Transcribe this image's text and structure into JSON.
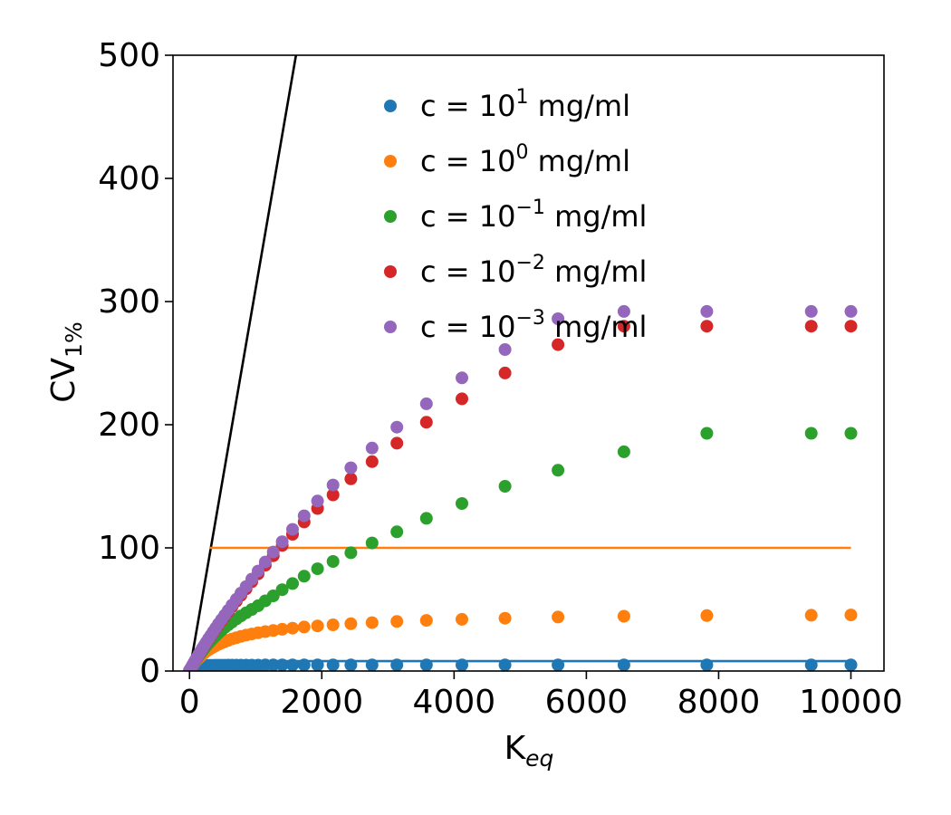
{
  "chart_data": {
    "type": "scatter",
    "xlabel": "K",
    "xlabel_sub": "eq",
    "ylabel": "CV",
    "ylabel_sub": "1%",
    "xlim": [
      -250,
      10500
    ],
    "ylim": [
      0,
      500
    ],
    "xticks": [
      0,
      2000,
      4000,
      6000,
      8000,
      10000
    ],
    "yticks": [
      0,
      100,
      200,
      300,
      400,
      500
    ],
    "xtick_labels": [
      "0",
      "2000",
      "4000",
      "6000",
      "8000",
      "10000"
    ],
    "ytick_labels": [
      "0",
      "100",
      "200",
      "300",
      "400",
      "500"
    ],
    "grid": false,
    "legend_position": "top-center",
    "x": [
      1,
      22,
      46,
      69,
      93,
      118,
      143,
      170,
      197,
      226,
      256,
      288,
      322,
      358,
      397,
      438,
      483,
      532,
      585,
      643,
      707,
      777,
      855,
      941,
      1037,
      1145,
      1266,
      1402,
      1557,
      1733,
      1936,
      2170,
      2440,
      2760,
      3135,
      3582,
      4119,
      4771,
      5572,
      6568,
      7822,
      9400,
      10000
    ],
    "series": [
      {
        "name_prefix": "c = 10",
        "name_exp": "1",
        "name_suffix": " mg/ml",
        "color": "#1f77b4",
        "values": [
          0.5,
          1.9,
          2.9,
          3.5,
          3.8,
          4.0,
          4.2,
          4.3,
          4.4,
          4.5,
          4.5,
          4.6,
          4.6,
          4.6,
          4.7,
          4.7,
          4.7,
          4.7,
          4.8,
          4.8,
          4.8,
          4.8,
          4.8,
          4.8,
          4.8,
          4.9,
          4.9,
          4.9,
          4.9,
          4.9,
          4.9,
          4.9,
          4.9,
          4.9,
          4.9,
          4.9,
          4.9,
          4.9,
          4.9,
          4.9,
          4.9,
          4.9,
          5.0
        ]
      },
      {
        "name_prefix": "c = 10",
        "name_exp": "0",
        "name_suffix": " mg/ml",
        "color": "#ff7f0e",
        "values": [
          0.5,
          2.3,
          4.3,
          6.1,
          7.8,
          9.4,
          10.8,
          12.2,
          13.5,
          14.8,
          16.0,
          17.2,
          18.4,
          19.5,
          20.6,
          21.7,
          22.8,
          23.9,
          24.9,
          26.0,
          27.0,
          28.1,
          29.1,
          30.1,
          31.0,
          32.0,
          32.9,
          33.9,
          34.8,
          35.7,
          36.6,
          37.5,
          38.4,
          39.3,
          40.2,
          41.1,
          42.0,
          42.9,
          43.8,
          44.5,
          45.0,
          45.3,
          45.5
        ]
      },
      {
        "name_prefix": "c = 10",
        "name_exp": "−1",
        "name_suffix": " mg/ml",
        "color": "#2ca02c",
        "values": [
          0.5,
          2.3,
          4.4,
          6.5,
          8.5,
          10.5,
          12.5,
          14.5,
          16.5,
          18.5,
          20.5,
          22.5,
          24.6,
          26.6,
          28.7,
          30.8,
          33.0,
          35.2,
          37.5,
          39.8,
          42.2,
          44.7,
          47.3,
          50.0,
          53.0,
          57.0,
          61.0,
          66.0,
          71.0,
          77.0,
          83.0,
          89.0,
          96.0,
          104.0,
          113.0,
          124.0,
          136.0,
          150.0,
          163.0,
          178.0,
          193.0,
          193.0,
          193.0
        ]
      },
      {
        "name_prefix": "c = 10",
        "name_exp": "−2",
        "name_suffix": " mg/ml",
        "color": "#d62728",
        "values": [
          0.5,
          2.4,
          4.6,
          6.8,
          9.0,
          11.2,
          13.5,
          15.8,
          18.2,
          20.6,
          23.1,
          25.7,
          28.4,
          31.2,
          34.2,
          37.3,
          40.7,
          44.3,
          48.1,
          52.2,
          56.7,
          61.5,
          66.7,
          72.5,
          78.9,
          85.9,
          93.6,
          102.0,
          111.0,
          121.0,
          132.0,
          143.0,
          156.0,
          170.0,
          185.0,
          202.0,
          221.0,
          242.0,
          265.0,
          280.0,
          280.0,
          280.0,
          280.0
        ]
      },
      {
        "name_prefix": "c = 10",
        "name_exp": "−3",
        "name_suffix": " mg/ml",
        "color": "#9467bd",
        "values": [
          0.5,
          2.5,
          4.7,
          7.0,
          9.2,
          11.5,
          13.8,
          16.2,
          18.6,
          21.1,
          23.6,
          26.3,
          29.0,
          31.9,
          35.0,
          38.2,
          41.7,
          45.4,
          49.3,
          53.6,
          58.2,
          63.2,
          68.6,
          74.6,
          81.2,
          88.5,
          96.6,
          105.0,
          115.0,
          126.0,
          138.0,
          151.0,
          165.0,
          181.0,
          198.0,
          217.0,
          238.0,
          261.0,
          286.0,
          292.0,
          292.0,
          292.0,
          292.0
        ]
      }
    ],
    "reference_lines": [
      {
        "color": "#000000",
        "points": [
          [
            0,
            0
          ],
          [
            1610,
            500
          ]
        ]
      },
      {
        "color": "#ff7f0e",
        "points": [
          [
            300,
            100
          ],
          [
            10000,
            100
          ]
        ]
      },
      {
        "color": "#1f77b4",
        "points": [
          [
            0,
            8
          ],
          [
            10000,
            8
          ]
        ]
      }
    ]
  }
}
